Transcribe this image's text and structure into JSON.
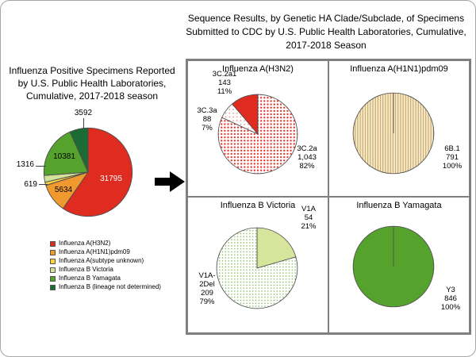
{
  "right_panel": {
    "title": "Sequence Results, by Genetic HA Clade/Subclade, of Specimens Submitted to CDC by U.S. Public Health Laboratories, Cumulative, 2017-2018 Season"
  },
  "colors": {
    "h3n2_red": "#e02b20",
    "h1n1_orange": "#f0992e",
    "subtype_unknown_yellow": "#ffd23f",
    "victoria_light_green": "#d3e29a",
    "yamagata_green": "#55a32d",
    "lineage_dark_green": "#1b6b35",
    "grid_border_gray": "#7f7f7f"
  },
  "chart_data": [
    {
      "type": "pie",
      "title": "Influenza Positive Specimens Reported by U.S. Public Health Laboratories, Cumulative, 2017-2018 season",
      "legend_position": "bottom-left",
      "slices": [
        {
          "label": "Influenza A(H3N2)",
          "value": 31795,
          "color": "#e02b20",
          "pattern": "solid"
        },
        {
          "label": "Influenza A(H1N1)pdm09",
          "value": 5634,
          "color": "#f0992e",
          "pattern": "solid"
        },
        {
          "label": "Influenza A(subtype unknown)",
          "value": 619,
          "color": "#ffd23f",
          "pattern": "solid"
        },
        {
          "label": "Influenza B Victoria",
          "value": 1316,
          "color": "#d3e29a",
          "pattern": "solid"
        },
        {
          "label": "Influenza B Yamagata",
          "value": 10381,
          "color": "#55a32d",
          "pattern": "solid"
        },
        {
          "label": "Influenza B (lineage not determined)",
          "value": 3592,
          "color": "#1b6b35",
          "pattern": "solid"
        }
      ]
    },
    {
      "type": "pie",
      "title": "Influenza A(H3N2)",
      "slices": [
        {
          "label": "3C.2a",
          "value": 1043,
          "pct": "82%",
          "color": "#e02b20",
          "bg": "#ffffff",
          "pattern": "dots"
        },
        {
          "label": "3C.3a",
          "value": 88,
          "pct": "7%",
          "color": "#e57f78",
          "bg": "#ffffff",
          "pattern": "dots-sparse"
        },
        {
          "label": "3C.2a1",
          "value": 143,
          "pct": "11%",
          "color": "#e02b20",
          "pattern": "solid"
        }
      ],
      "callouts": [
        {
          "text": "3C.2a1\n143\n11%"
        },
        {
          "text": "3C.3a\n88\n7%"
        },
        {
          "text": "3C.2a\n1,043\n82%"
        }
      ]
    },
    {
      "type": "pie",
      "title": "Influenza A(H1N1)pdm09",
      "slices": [
        {
          "label": "6B.1",
          "value": 791,
          "pct": "100%",
          "color": "#c49a5a",
          "bg": "#f5ecca",
          "pattern": "vlines"
        }
      ],
      "callouts": [
        {
          "text": "6B.1\n791\n100%"
        }
      ]
    },
    {
      "type": "pie",
      "title": "Influenza B Victoria",
      "slices": [
        {
          "label": "V1A",
          "value": 54,
          "pct": "21%",
          "color": "#d7e49c",
          "pattern": "solid"
        },
        {
          "label": "V1A-2Del",
          "value": 209,
          "pct": "79%",
          "color": "#6fae3e",
          "bg": "#ffffff",
          "pattern": "grid"
        }
      ],
      "callouts": [
        {
          "text": "V1A\n54\n21%"
        },
        {
          "text": "V1A-\n2Del\n209\n79%"
        }
      ]
    },
    {
      "type": "pie",
      "title": "Influenza B Yamagata",
      "slices": [
        {
          "label": "Y3",
          "value": 846,
          "pct": "100%",
          "color": "#55a32d",
          "pattern": "solid"
        }
      ],
      "callouts": [
        {
          "text": "Y3\n846\n100%"
        }
      ]
    }
  ]
}
